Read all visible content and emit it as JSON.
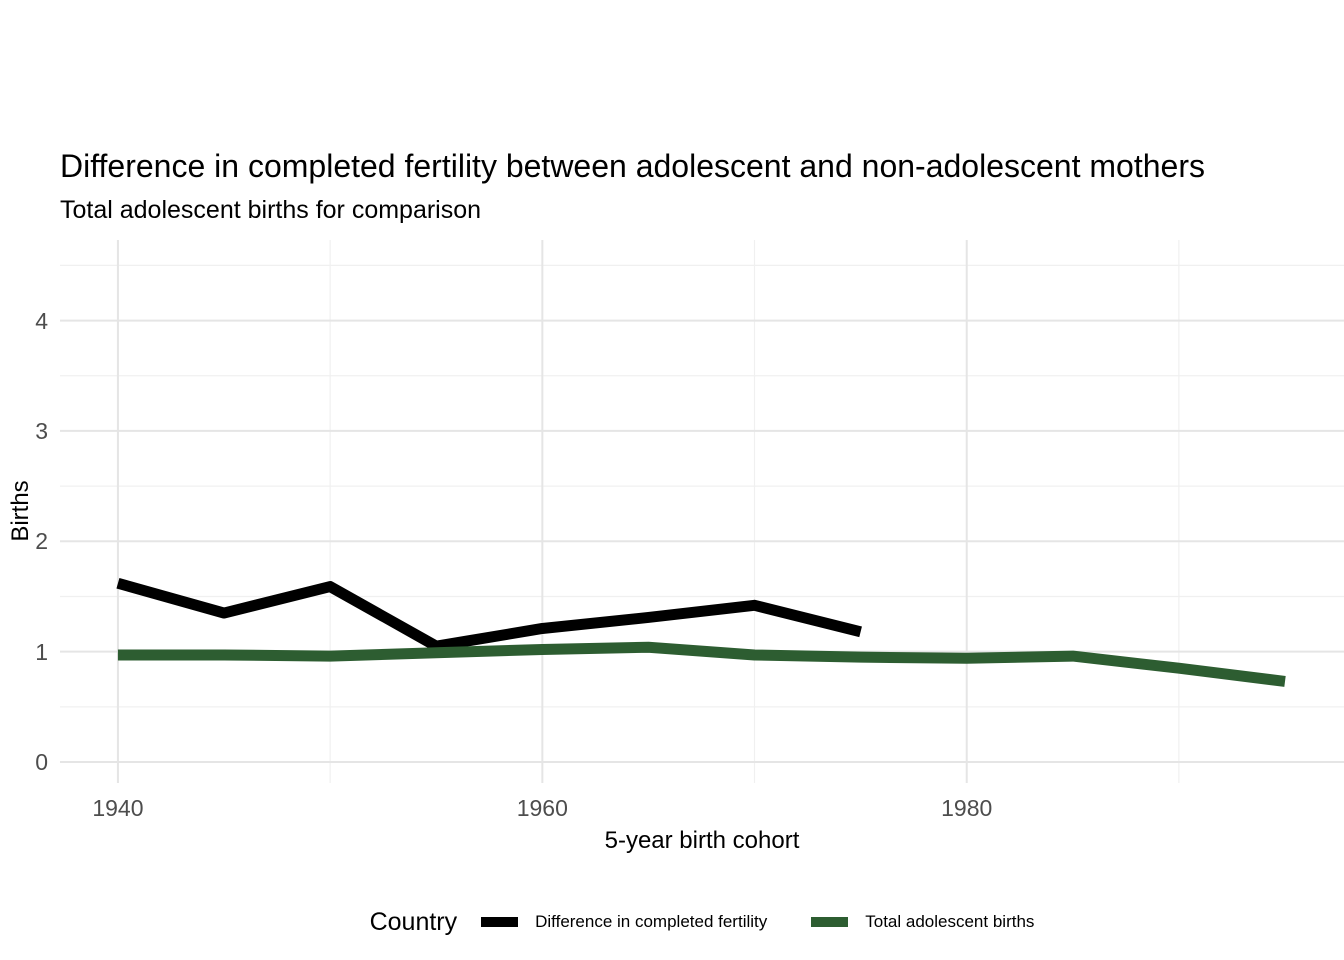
{
  "chart_data": {
    "type": "line",
    "title": "Difference in completed fertility between adolescent and non-adolescent mothers",
    "subtitle": "Total adolescent births for comparison",
    "xlabel": "5-year birth cohort",
    "ylabel": "Births",
    "legend_title": "Country",
    "legend_position": "bottom",
    "grid": true,
    "xlim": [
      1937.27,
      1997.78
    ],
    "ylim": [
      -0.19,
      4.73
    ],
    "x_ticks": {
      "major": [
        1940,
        1960,
        1980
      ],
      "minor": [
        1950,
        1970,
        1990
      ],
      "labels": [
        "1940",
        "1960",
        "1980"
      ]
    },
    "y_ticks": {
      "major": [
        0,
        1,
        2,
        3,
        4
      ],
      "minor": [
        0.5,
        1.5,
        2.5,
        3.5,
        4.5
      ],
      "labels": [
        "0",
        "1",
        "2",
        "3",
        "4"
      ]
    },
    "series": [
      {
        "name": "Difference in completed fertility",
        "color": "#000000",
        "linewidth": 11,
        "x": [
          1940,
          1945,
          1950,
          1955,
          1960,
          1965,
          1970,
          1975
        ],
        "values": [
          1.62,
          1.35,
          1.59,
          1.05,
          1.21,
          1.31,
          1.42,
          1.18
        ]
      },
      {
        "name": "Total adolescent births",
        "color": "#2d5d31",
        "linewidth": 11,
        "x": [
          1940,
          1945,
          1950,
          1955,
          1960,
          1965,
          1970,
          1975,
          1980,
          1985,
          1990,
          1995
        ],
        "values": [
          0.97,
          0.97,
          0.96,
          0.99,
          1.02,
          1.04,
          0.97,
          0.95,
          0.94,
          0.96,
          0.85,
          0.73
        ]
      }
    ],
    "colors": {
      "grid_major": "#e5e5e5",
      "grid_minor": "#f0f0f0",
      "axis_text": "#4d4d4d",
      "text": "#000000",
      "background": "#ffffff"
    }
  }
}
